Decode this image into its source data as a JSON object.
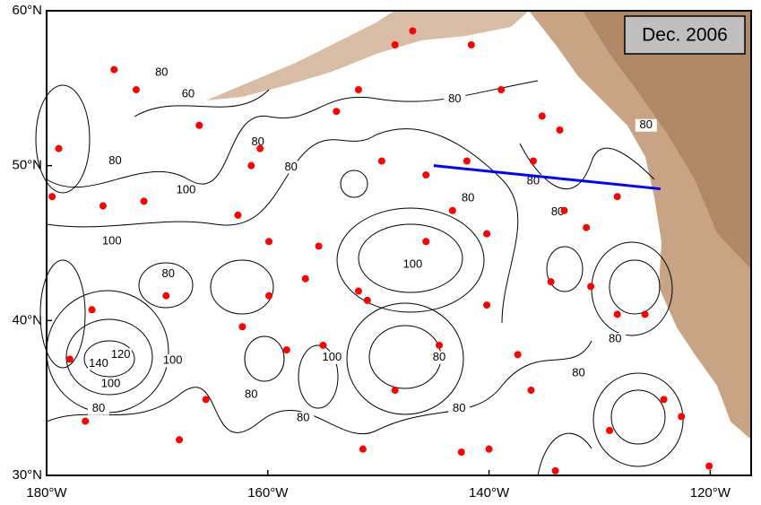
{
  "map": {
    "date_label": "Dec. 2006",
    "lon_range": [
      -180,
      -116.3
    ],
    "lat_range": [
      30,
      60
    ],
    "lon_ticks": [
      {
        "value": -180,
        "label": "180°W"
      },
      {
        "value": -160,
        "label": "160°W"
      },
      {
        "value": -140,
        "label": "140°W"
      },
      {
        "value": -120,
        "label": "120°W"
      }
    ],
    "lat_ticks": [
      {
        "value": 60,
        "label": "60°N"
      },
      {
        "value": 50,
        "label": "50°N"
      },
      {
        "value": 40,
        "label": "40°N"
      },
      {
        "value": 30,
        "label": "30°N"
      }
    ],
    "section": {
      "lon": [
        -145,
        -124.5
      ],
      "lat": [
        50,
        48.5
      ],
      "color": "#0000ff"
    },
    "float_color": "#ff0000",
    "floats": {
      "lon": [
        -173.9,
        -171.9,
        -166.2,
        -161.5,
        -162.7,
        -159.9,
        -169.2,
        -175.9,
        -177.9,
        -176.5,
        -168,
        -165.6,
        -162.3,
        -158.3,
        -155,
        -156.6,
        -155.4,
        -148.5,
        -146.9,
        -151.8,
        -153.8,
        -149.7,
        -145.7,
        -143.3,
        -145.7,
        -141.6,
        -138.9,
        -135.2,
        -133.6,
        -136,
        -133.2,
        -131.2,
        -134.4,
        -130.8,
        -128.4,
        -125.9,
        -137.4,
        -136.2,
        -140.2,
        -140.2,
        -144.5,
        -148.5,
        -151.4,
        -142.5,
        -140,
        -134,
        -124.2,
        -122.6,
        -120.1,
        -129.1,
        -151.8,
        -151,
        -159.9,
        -171.2,
        -174.9,
        -179.5,
        -178.9,
        -160.7,
        -142,
        -128.4
      ],
      "lat": [
        56.2,
        54.9,
        52.6,
        50,
        46.8,
        45.1,
        41.6,
        40.7,
        37.5,
        33.5,
        32.3,
        34.9,
        39.6,
        38.1,
        38.4,
        42.7,
        44.8,
        57.8,
        58.7,
        54.9,
        53.5,
        50.3,
        49.4,
        47.1,
        45.1,
        57.8,
        54.9,
        53.2,
        52.3,
        50.3,
        47.1,
        46,
        42.5,
        42.2,
        40.4,
        40.4,
        37.8,
        35.5,
        41,
        45.6,
        38.4,
        35.5,
        31.7,
        31.5,
        31.7,
        30.3,
        34.9,
        33.8,
        30.6,
        32.9,
        41.9,
        41.3,
        41.6,
        47.7,
        47.4,
        48,
        51.1,
        51.1,
        50.3,
        48
      ]
    },
    "contour_labels": [
      {
        "value": 80,
        "lon": -173.8,
        "lat": 50.3
      },
      {
        "value": 60,
        "lon": -167.2,
        "lat": 54.6
      },
      {
        "value": 80,
        "lon": -169.6,
        "lat": 56
      },
      {
        "value": 100,
        "lon": -167.4,
        "lat": 48.4
      },
      {
        "value": 100,
        "lon": -174.1,
        "lat": 45.1
      },
      {
        "value": 80,
        "lon": -169,
        "lat": 43
      },
      {
        "value": 120,
        "lon": -173.3,
        "lat": 37.8
      },
      {
        "value": 140,
        "lon": -175.3,
        "lat": 37.2
      },
      {
        "value": 100,
        "lon": -174.2,
        "lat": 35.9
      },
      {
        "value": 80,
        "lon": -175.3,
        "lat": 34.3
      },
      {
        "value": 100,
        "lon": -168.6,
        "lat": 37.4
      },
      {
        "value": 80,
        "lon": -160.9,
        "lat": 51.5
      },
      {
        "value": 80,
        "lon": -161.5,
        "lat": 35.2
      },
      {
        "value": 80,
        "lon": -156.8,
        "lat": 33.7
      },
      {
        "value": 80,
        "lon": -157.9,
        "lat": 49.9
      },
      {
        "value": 100,
        "lon": -154.2,
        "lat": 37.6
      },
      {
        "value": 100,
        "lon": -146.9,
        "lat": 43.6
      },
      {
        "value": 80,
        "lon": -144.5,
        "lat": 37.6
      },
      {
        "value": 80,
        "lon": -142.7,
        "lat": 34.3
      },
      {
        "value": 80,
        "lon": -143.1,
        "lat": 54.3
      },
      {
        "value": 80,
        "lon": -141.9,
        "lat": 47.9
      },
      {
        "value": 80,
        "lon": -136,
        "lat": 49
      },
      {
        "value": 80,
        "lon": -133.8,
        "lat": 47
      },
      {
        "value": 80,
        "lon": -131.9,
        "lat": 36.6
      },
      {
        "value": 80,
        "lon": -128.6,
        "lat": 38.8
      },
      {
        "value": 80,
        "lon": -125.8,
        "lat": 52.6
      }
    ]
  }
}
